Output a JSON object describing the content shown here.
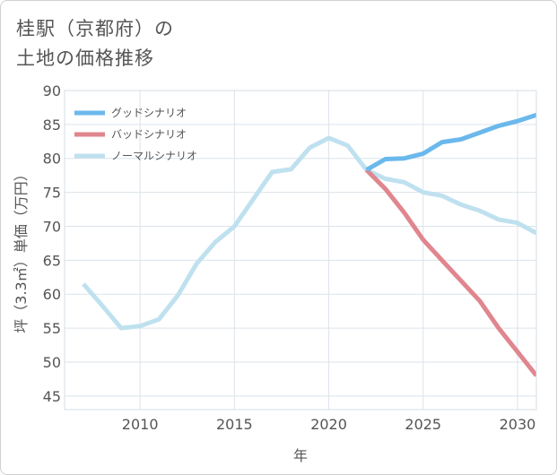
{
  "title": "桂駅（京都府）の\n土地の価格推移",
  "chart_data": {
    "type": "line",
    "xlabel": "年",
    "ylabel": "坪（3.3㎡）単価（万円）",
    "xlim": [
      2006,
      2031
    ],
    "ylim": [
      43,
      90
    ],
    "xticks": [
      2010,
      2015,
      2020,
      2025,
      2030
    ],
    "yticks": [
      45,
      50,
      55,
      60,
      65,
      70,
      75,
      80,
      85,
      90
    ],
    "grid": true,
    "legend_position": "top-left",
    "series": [
      {
        "name": "グッドシナリオ",
        "color": "#6bb8ec",
        "x": [
          2022,
          2023,
          2024,
          2025,
          2026,
          2027,
          2028,
          2029,
          2030,
          2031
        ],
        "y": [
          78.3,
          79.9,
          80.0,
          80.7,
          82.4,
          82.8,
          83.8,
          84.8,
          85.5,
          86.4
        ]
      },
      {
        "name": "バッドシナリオ",
        "color": "#e0868e",
        "x": [
          2022,
          2023,
          2024,
          2025,
          2026,
          2027,
          2028,
          2029,
          2030,
          2031
        ],
        "y": [
          78.3,
          75.5,
          72.0,
          68.0,
          65.0,
          62.0,
          59.0,
          55.0,
          51.5,
          48.0
        ]
      },
      {
        "name": "ノーマルシナリオ",
        "color": "#bfe1ef",
        "x": [
          2007,
          2008,
          2009,
          2010,
          2011,
          2012,
          2013,
          2014,
          2015,
          2016,
          2017,
          2018,
          2019,
          2020,
          2021,
          2022,
          2023,
          2024,
          2025,
          2026,
          2027,
          2028,
          2029,
          2030,
          2031
        ],
        "y": [
          61.5,
          58.3,
          55.0,
          55.3,
          56.3,
          59.8,
          64.5,
          67.7,
          70.0,
          74.0,
          78.0,
          78.4,
          81.6,
          83.0,
          81.9,
          78.3,
          77.0,
          76.5,
          75.0,
          74.5,
          73.2,
          72.3,
          71.0,
          70.5,
          69.0
        ]
      }
    ]
  }
}
